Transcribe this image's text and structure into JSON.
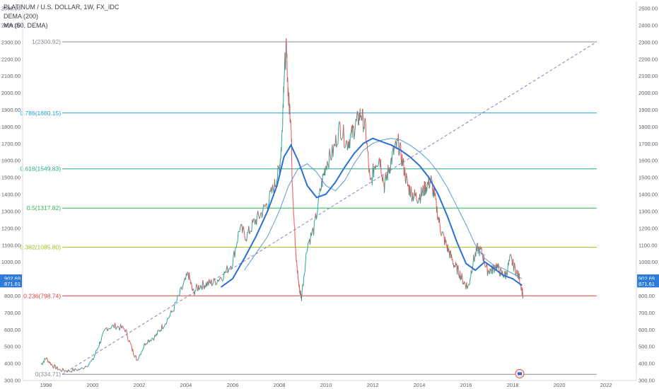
{
  "chart_data": {
    "type": "line",
    "title": "PLATINUM / U.S. DOLLAR, 1W, FX_IDC",
    "indicators": [
      "DEMA (200)",
      "MA (50, DEMA)"
    ],
    "x_ticks": [
      "1998",
      "2000",
      "2002",
      "2004",
      "2006",
      "2008",
      "2010",
      "2012",
      "2014",
      "2016",
      "2018",
      "2020",
      "2022"
    ],
    "y_ticks": [
      300,
      400,
      500,
      600,
      700,
      800,
      900,
      1000,
      1100,
      1200,
      1300,
      1400,
      1500,
      1600,
      1700,
      1800,
      1900,
      2000,
      2100,
      2200,
      2300,
      2400,
      2500
    ],
    "y_tick_labels": [
      "300.00",
      "400.00",
      "500.00",
      "600.00",
      "700.00",
      "800.00",
      "900.00",
      "1000.00",
      "1100.00",
      "1200.00",
      "1300.00",
      "1400.00",
      "1500.00",
      "1600.00",
      "1700.00",
      "1800.00",
      "1900.00",
      "2000.00",
      "2100.00",
      "2200.00",
      "2300.00",
      "2400.00",
      "2500.00"
    ],
    "ylim": [
      298,
      2540
    ],
    "xlim": [
      1997.0,
      2023.3
    ],
    "grid": false,
    "price_labels": [
      {
        "text": "902.69",
        "value": 902.69,
        "color": "#2f7bd8"
      },
      {
        "text": "871.61",
        "value": 871.61,
        "color": "#2f7bd8"
      }
    ],
    "fib_levels": [
      {
        "label": "1(2300.92)",
        "ratio": "1",
        "value": 2300.92,
        "color": "#8a8e96"
      },
      {
        "label": "0.786(1880.15)",
        "ratio": "0.786",
        "value": 1880.15,
        "color": "#2aa0d8"
      },
      {
        "label": "0.618(1549.83)",
        "ratio": "0.618",
        "value": 1549.83,
        "color": "#27a98c"
      },
      {
        "label": "0.5(1317.82)",
        "ratio": "0.5",
        "value": 1317.82,
        "color": "#2fb84f"
      },
      {
        "label": "0.382(1085.80)",
        "ratio": "0.382",
        "value": 1085.8,
        "color": "#9cc31f"
      },
      {
        "label": "0.236(798.74)",
        "ratio": "0.236",
        "value": 798.74,
        "color": "#d8453a"
      },
      {
        "label": "0(334.71)",
        "ratio": "0",
        "value": 334.71,
        "color": "#8a8e96"
      }
    ],
    "trendline": {
      "from": [
        1998.7,
        334.71
      ],
      "to": [
        2021.6,
        2300.92
      ],
      "style": "dashed"
    },
    "price_series": {
      "name": "",
      "x": [
        1997.8,
        1998.0,
        1998.3,
        1998.6,
        1999.0,
        1999.5,
        2000.0,
        2000.3,
        2000.6,
        2001.0,
        2001.4,
        2001.7,
        2001.9,
        2002.3,
        2002.7,
        2003.0,
        2003.4,
        2003.8,
        2004.1,
        2004.3,
        2004.6,
        2004.9,
        2005.2,
        2005.6,
        2006.0,
        2006.3,
        2006.6,
        2006.9,
        2007.2,
        2007.5,
        2007.8,
        2008.0,
        2008.1,
        2008.2,
        2008.3,
        2008.4,
        2008.5,
        2008.55,
        2008.7,
        2008.85,
        2008.95,
        2009.2,
        2009.5,
        2009.8,
        2010.0,
        2010.3,
        2010.6,
        2010.9,
        2011.1,
        2011.3,
        2011.5,
        2011.7,
        2011.9,
        2012.1,
        2012.3,
        2012.5,
        2012.7,
        2012.9,
        2013.1,
        2013.3,
        2013.5,
        2013.7,
        2013.9,
        2014.1,
        2014.3,
        2014.5,
        2014.7,
        2014.9,
        2015.1,
        2015.3,
        2015.5,
        2015.7,
        2015.9,
        2016.1,
        2016.3,
        2016.5,
        2016.7,
        2016.9,
        2017.1,
        2017.3,
        2017.5,
        2017.7,
        2017.9,
        2018.1,
        2018.3,
        2018.45
      ],
      "values": [
        395,
        430,
        385,
        360,
        355,
        365,
        415,
        520,
        610,
        620,
        600,
        480,
        420,
        530,
        560,
        620,
        700,
        830,
        930,
        820,
        860,
        870,
        880,
        920,
        1000,
        1200,
        1150,
        1230,
        1280,
        1350,
        1450,
        1550,
        1700,
        2100,
        2260,
        1950,
        1850,
        1500,
        1050,
        850,
        790,
        1100,
        1200,
        1450,
        1580,
        1650,
        1800,
        1700,
        1750,
        1820,
        1880,
        1780,
        1450,
        1580,
        1620,
        1450,
        1550,
        1650,
        1700,
        1580,
        1450,
        1400,
        1380,
        1400,
        1450,
        1480,
        1350,
        1200,
        1120,
        1050,
        980,
        940,
        880,
        850,
        1000,
        1080,
        1050,
        950,
        950,
        980,
        930,
        920,
        1020,
        960,
        900,
        800
      ]
    },
    "dema_series": {
      "name": "",
      "x": [
        2005.5,
        2006.0,
        2006.5,
        2007.0,
        2007.5,
        2007.9,
        2008.2,
        2008.5,
        2008.8,
        2009.2,
        2009.6,
        2010.0,
        2010.4,
        2010.8,
        2011.2,
        2011.6,
        2012.0,
        2012.4,
        2012.8,
        2013.2,
        2013.6,
        2014.0,
        2014.4,
        2014.8,
        2015.2,
        2015.6,
        2016.0,
        2016.4,
        2016.8,
        2017.2,
        2017.6,
        2018.0,
        2018.4
      ],
      "values": [
        850,
        900,
        1020,
        1150,
        1300,
        1450,
        1620,
        1690,
        1600,
        1450,
        1380,
        1400,
        1470,
        1560,
        1640,
        1700,
        1730,
        1710,
        1690,
        1660,
        1620,
        1570,
        1500,
        1400,
        1270,
        1120,
        990,
        950,
        1000,
        960,
        920,
        900,
        860
      ]
    },
    "ma_series": {
      "name": "",
      "x": [
        2006.5,
        2007.0,
        2007.5,
        2008.0,
        2008.4,
        2008.8,
        2009.2,
        2009.6,
        2010.0,
        2010.4,
        2010.8,
        2011.2,
        2011.6,
        2012.0,
        2012.4,
        2012.8,
        2013.2,
        2013.6,
        2014.0,
        2014.4,
        2014.8,
        2015.2,
        2015.6,
        2016.0,
        2016.4,
        2016.8,
        2017.2,
        2017.6,
        2018.0,
        2018.4
      ],
      "values": [
        950,
        1050,
        1150,
        1300,
        1450,
        1550,
        1580,
        1530,
        1450,
        1420,
        1480,
        1580,
        1660,
        1700,
        1720,
        1730,
        1720,
        1690,
        1650,
        1600,
        1530,
        1440,
        1330,
        1220,
        1100,
        1020,
        980,
        960,
        930,
        900
      ]
    }
  }
}
